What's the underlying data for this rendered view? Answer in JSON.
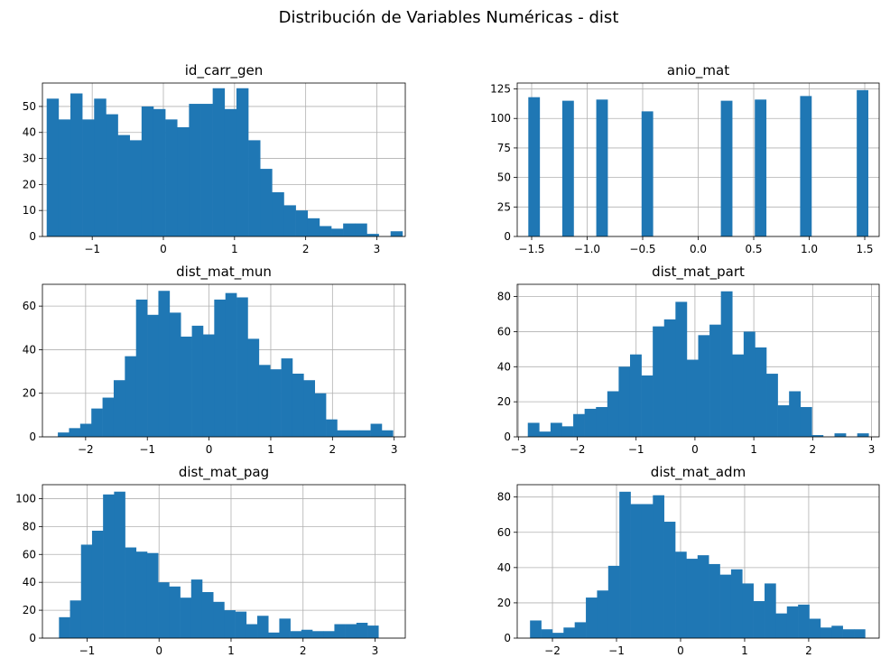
{
  "figure_title": "Distribución de Variables Numéricas - dist",
  "colors": {
    "bar": "#1f77b4",
    "grid": "#b0b0b0",
    "axis": "#000000"
  },
  "chart_data": [
    {
      "type": "bar",
      "title": "id_carr_gen",
      "xlim": [
        -1.7,
        3.4
      ],
      "ylim": [
        0,
        59
      ],
      "xticks": [
        -1,
        0,
        1,
        2,
        3
      ],
      "xtick_labels": [
        "−1",
        "0",
        "1",
        "2",
        "3"
      ],
      "yticks": [
        0,
        10,
        20,
        30,
        40,
        50
      ],
      "grid": true,
      "bin_start": -1.64,
      "bin_end": 3.36,
      "values": [
        53,
        45,
        55,
        45,
        53,
        47,
        39,
        37,
        50,
        49,
        45,
        42,
        51,
        51,
        57,
        49,
        57,
        37,
        26,
        17,
        12,
        10,
        7,
        4,
        3,
        5,
        5,
        1,
        0,
        2
      ]
    },
    {
      "type": "bar",
      "title": "anio_mat",
      "xlim": [
        -1.63,
        1.63
      ],
      "ylim": [
        0,
        130
      ],
      "xticks": [
        -1.5,
        -1.0,
        -0.5,
        0.0,
        0.5,
        1.0,
        1.5
      ],
      "xtick_labels": [
        "−1.5",
        "−1.0",
        "−0.5",
        "0.0",
        "0.5",
        "1.0",
        "1.5"
      ],
      "yticks": [
        0,
        25,
        50,
        75,
        100,
        125
      ],
      "grid": true,
      "bin_start": -1.53,
      "bin_end": 1.53,
      "values": [
        118,
        0,
        0,
        115,
        0,
        0,
        116,
        0,
        0,
        0,
        106,
        0,
        0,
        0,
        0,
        0,
        0,
        115,
        0,
        0,
        116,
        0,
        0,
        0,
        119,
        0,
        0,
        0,
        0,
        124
      ]
    },
    {
      "type": "bar",
      "title": "dist_mat_mun",
      "xlim": [
        -2.7,
        3.18
      ],
      "ylim": [
        0,
        70
      ],
      "xticks": [
        -2,
        -1,
        0,
        1,
        2,
        3
      ],
      "xtick_labels": [
        "−2",
        "−1",
        "0",
        "1",
        "2",
        "3"
      ],
      "yticks": [
        0,
        20,
        40,
        60
      ],
      "grid": true,
      "bin_start": -2.45,
      "bin_end": 2.98,
      "values": [
        2,
        4,
        6,
        13,
        18,
        26,
        37,
        63,
        56,
        67,
        57,
        46,
        51,
        47,
        63,
        66,
        64,
        45,
        33,
        31,
        36,
        29,
        26,
        20,
        8,
        3,
        3,
        3,
        6,
        3
      ]
    },
    {
      "type": "bar",
      "title": "dist_mat_part",
      "xlim": [
        -3.02,
        3.13
      ],
      "ylim": [
        0,
        87
      ],
      "xticks": [
        -3,
        -2,
        -1,
        0,
        1,
        2,
        3
      ],
      "xtick_labels": [
        "−3",
        "−2",
        "−1",
        "0",
        "1",
        "2",
        "3"
      ],
      "yticks": [
        0,
        20,
        40,
        60,
        80
      ],
      "grid": true,
      "bin_start": -2.84,
      "bin_end": 2.95,
      "values": [
        8,
        3,
        8,
        6,
        13,
        16,
        17,
        26,
        40,
        47,
        35,
        63,
        67,
        77,
        44,
        58,
        64,
        83,
        47,
        60,
        51,
        36,
        18,
        26,
        17,
        1,
        0,
        2,
        0,
        2
      ]
    },
    {
      "type": "bar",
      "title": "dist_mat_pag",
      "xlim": [
        -1.62,
        3.42
      ],
      "ylim": [
        0,
        110
      ],
      "xticks": [
        -1,
        0,
        1,
        2,
        3
      ],
      "xtick_labels": [
        "−1",
        "0",
        "1",
        "2",
        "3"
      ],
      "yticks": [
        0,
        20,
        40,
        60,
        80,
        100
      ],
      "grid": true,
      "bin_start": -1.39,
      "bin_end": 3.2,
      "values": [
        15,
        27,
        67,
        77,
        103,
        105,
        65,
        62,
        61,
        40,
        37,
        29,
        42,
        33,
        26,
        20,
        19,
        10,
        16,
        4,
        14,
        5,
        6,
        5,
        5,
        10,
        10,
        11,
        9,
        0
      ]
    },
    {
      "type": "bar",
      "title": "dist_mat_adm",
      "xlim": [
        -2.55,
        3.1
      ],
      "ylim": [
        0,
        87
      ],
      "xticks": [
        -2,
        -1,
        0,
        1,
        2
      ],
      "xtick_labels": [
        "−2",
        "−1",
        "0",
        "1",
        "2"
      ],
      "yticks": [
        0,
        20,
        40,
        60,
        80
      ],
      "grid": true,
      "bin_start": -2.35,
      "bin_end": 2.88,
      "values": [
        10,
        5,
        3,
        6,
        9,
        23,
        27,
        41,
        83,
        76,
        76,
        81,
        66,
        49,
        45,
        47,
        42,
        36,
        39,
        31,
        21,
        31,
        14,
        18,
        19,
        11,
        6,
        7,
        5,
        5
      ]
    }
  ]
}
